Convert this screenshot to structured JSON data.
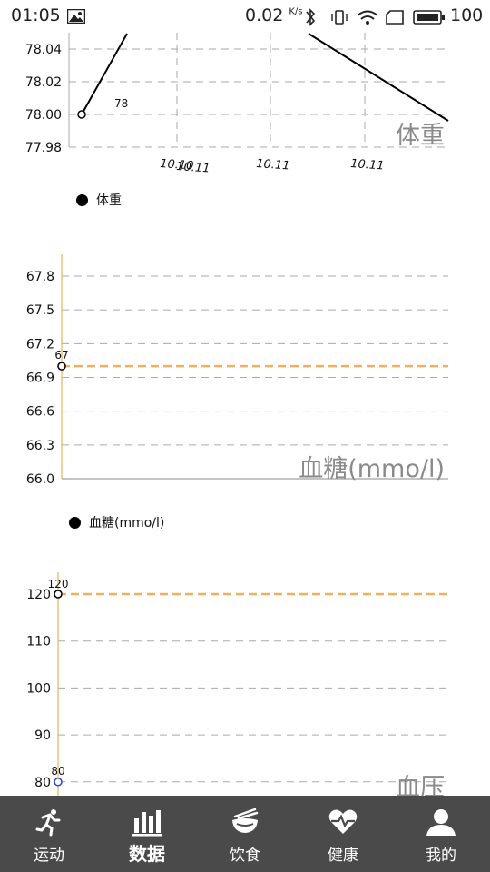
{
  "status_bar": {
    "time": "01:05",
    "net_speed": "0.02",
    "net_unit": "K/s",
    "battery": "100"
  },
  "charts": {
    "weight": {
      "description": "体重",
      "legend": "体重",
      "point_label": "78",
      "y_ticks": [
        "78.04",
        "78.02",
        "78.00",
        "77.98"
      ],
      "x_labels": [
        "10.10",
        "10.11",
        "10.11",
        "10.11"
      ]
    },
    "glucose": {
      "description": "血糖(mmo/l)",
      "legend": "血糖(mmo/l)",
      "point_label": "67",
      "y_ticks": [
        "67.8",
        "67.5",
        "67.2",
        "66.9",
        "66.6",
        "66.3",
        "66.0"
      ]
    },
    "pressure": {
      "description": "血压",
      "point_label_high": "120",
      "point_label_low": "80",
      "y_ticks": [
        "120",
        "110",
        "100",
        "90",
        "80"
      ]
    }
  },
  "chart_data": [
    {
      "type": "line",
      "categories": [
        "10.10",
        "10.11",
        "10.11",
        "10.11"
      ],
      "series": [
        {
          "values": [
            78.0,
            78.1,
            78.1,
            77.99
          ]
        }
      ],
      "ylim": [
        77.98,
        78.05
      ],
      "grid": true,
      "legend": "bottom-left",
      "title": "",
      "description": "体重"
    },
    {
      "type": "line",
      "series": [
        {
          "values": [
            67,
            67
          ]
        }
      ],
      "ylim": [
        66.0,
        68.0
      ],
      "grid": true,
      "legend": "bottom-left",
      "limit_line": 67,
      "description": "血糖(mmo/l)"
    },
    {
      "type": "line",
      "series": [
        {
          "values": [
            120,
            120
          ]
        },
        {
          "values": [
            80,
            80
          ]
        }
      ],
      "ylim": [
        75,
        125
      ],
      "grid": true,
      "limit_line": 120,
      "description": "血压"
    }
  ],
  "bottom_nav": {
    "items": [
      {
        "label": "运动",
        "icon": "running-icon"
      },
      {
        "label": "数据",
        "icon": "bar-chart-icon"
      },
      {
        "label": "饮食",
        "icon": "bowl-icon"
      },
      {
        "label": "健康",
        "icon": "heart-pulse-icon"
      },
      {
        "label": "我的",
        "icon": "user-icon"
      }
    ],
    "active": "数据",
    "color": "#4a4a4a"
  }
}
